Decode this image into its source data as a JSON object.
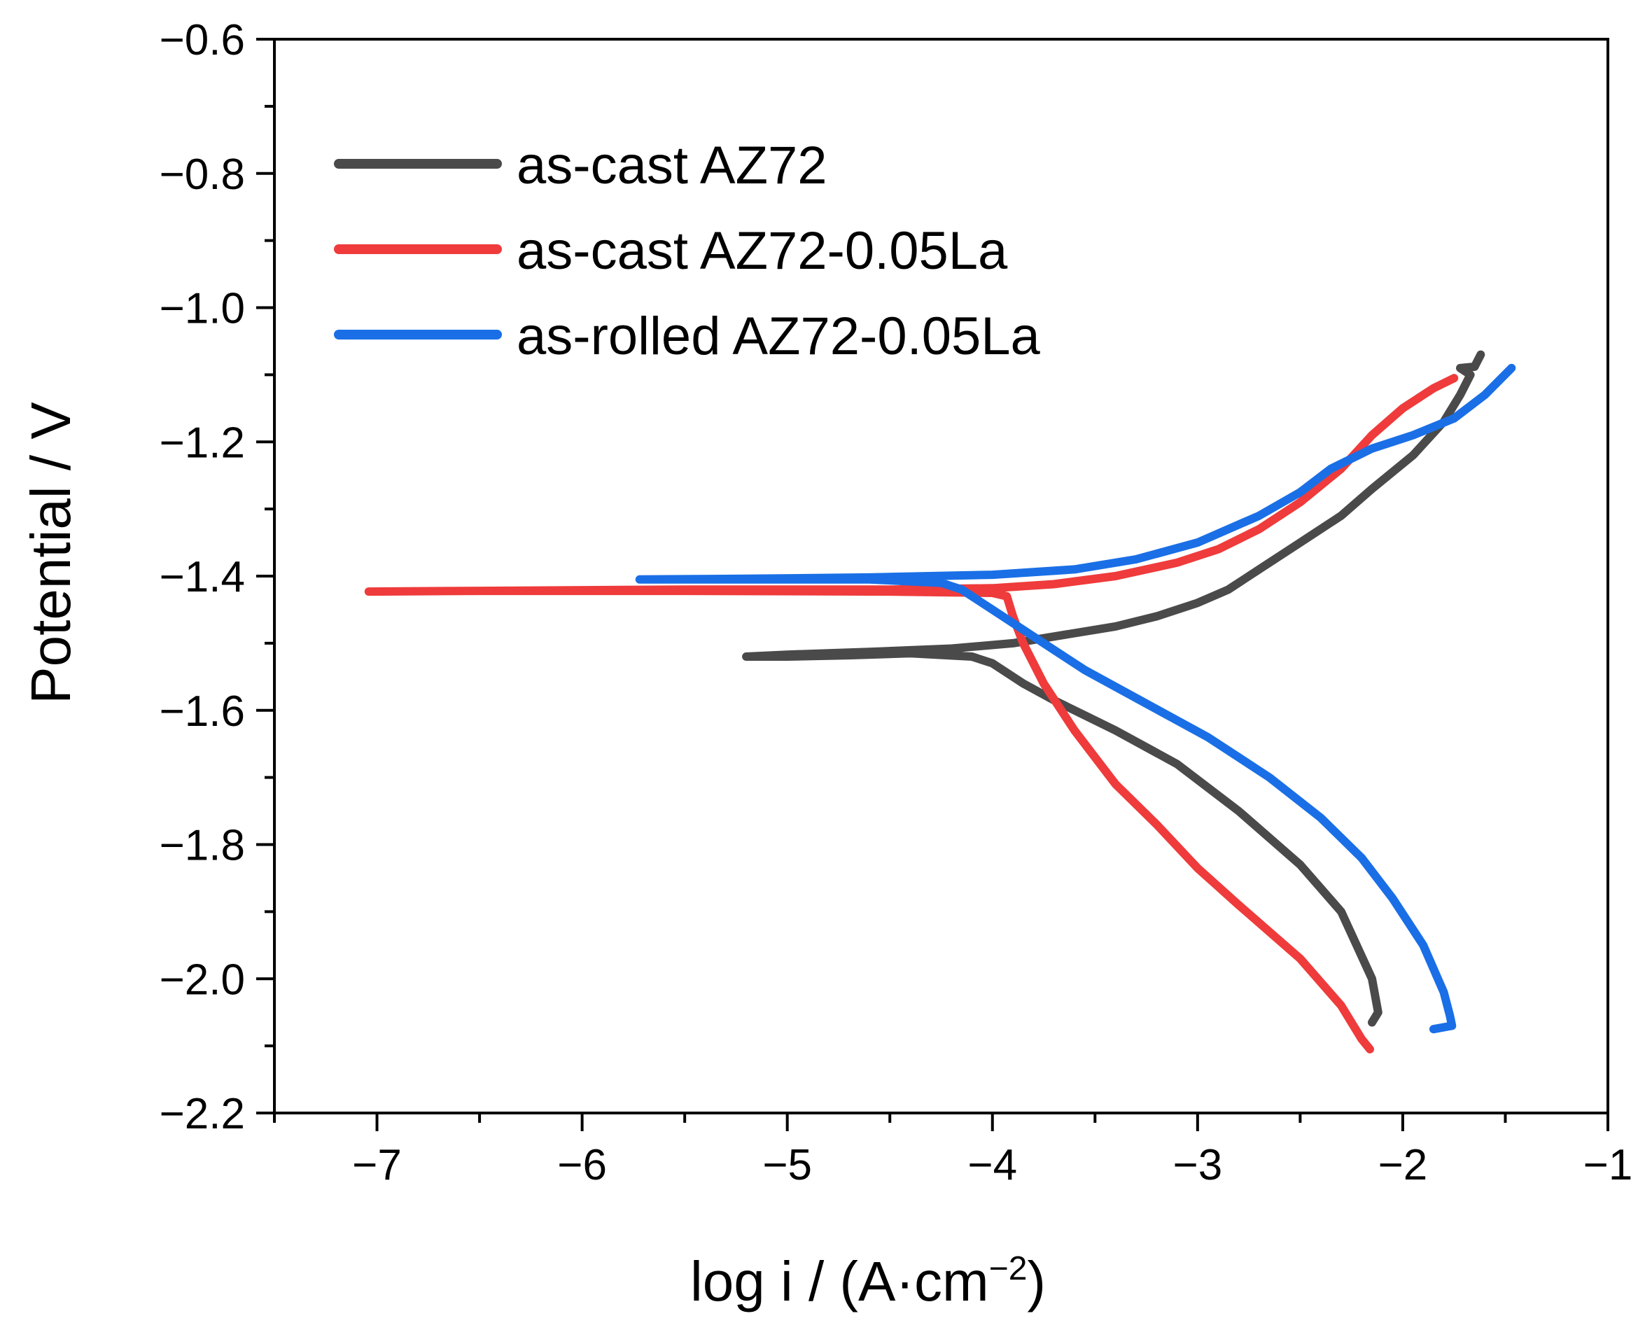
{
  "chart_data": {
    "type": "line",
    "title": "",
    "xlabel": "log i / (A·cm",
    "xlabel_sup": "−2",
    "xlabel_close": ")",
    "ylabel": "Potential / V",
    "xlim": [
      -7.5,
      -1
    ],
    "ylim": [
      -2.2,
      -0.6
    ],
    "x_ticks": [
      -7,
      -6,
      -5,
      -4,
      -3,
      -2,
      -1
    ],
    "x_tick_labels": [
      "−7",
      "−6",
      "−5",
      "−4",
      "−3",
      "−2",
      "−1"
    ],
    "y_ticks": [
      -0.6,
      -0.8,
      -1.0,
      -1.2,
      -1.4,
      -1.6,
      -1.8,
      -2.0,
      -2.2
    ],
    "y_tick_labels": [
      "−0.6",
      "−0.8",
      "−1.0",
      "−1.2",
      "−1.4",
      "−1.6",
      "−1.8",
      "−2.0",
      "−2.2"
    ],
    "grid": false,
    "legend_position": "top-left",
    "series": [
      {
        "name": "as-cast  AZ72",
        "color": "#4a4a4a",
        "points": [
          [
            -2.15,
            -2.065
          ],
          [
            -2.12,
            -2.05
          ],
          [
            -2.15,
            -2.0
          ],
          [
            -2.3,
            -1.9
          ],
          [
            -2.5,
            -1.83
          ],
          [
            -2.8,
            -1.75
          ],
          [
            -3.1,
            -1.68
          ],
          [
            -3.4,
            -1.63
          ],
          [
            -3.7,
            -1.585
          ],
          [
            -3.85,
            -1.56
          ],
          [
            -4.0,
            -1.53
          ],
          [
            -4.1,
            -1.52
          ],
          [
            -4.4,
            -1.515
          ],
          [
            -4.7,
            -1.518
          ],
          [
            -5.0,
            -1.52
          ],
          [
            -5.2,
            -1.52
          ],
          [
            -5.0,
            -1.517
          ],
          [
            -4.6,
            -1.513
          ],
          [
            -4.2,
            -1.508
          ],
          [
            -3.9,
            -1.5
          ],
          [
            -3.7,
            -1.49
          ],
          [
            -3.4,
            -1.475
          ],
          [
            -3.2,
            -1.46
          ],
          [
            -3.0,
            -1.44
          ],
          [
            -2.85,
            -1.42
          ],
          [
            -2.7,
            -1.39
          ],
          [
            -2.5,
            -1.35
          ],
          [
            -2.3,
            -1.31
          ],
          [
            -2.15,
            -1.27
          ],
          [
            -1.95,
            -1.22
          ],
          [
            -1.8,
            -1.17
          ],
          [
            -1.72,
            -1.13
          ],
          [
            -1.67,
            -1.1
          ],
          [
            -1.72,
            -1.09
          ],
          [
            -1.65,
            -1.088
          ],
          [
            -1.62,
            -1.07
          ]
        ]
      },
      {
        "name": "as-cast AZ72-0.05La",
        "color": "#ef3b3b",
        "points": [
          [
            -2.16,
            -2.105
          ],
          [
            -2.2,
            -2.09
          ],
          [
            -2.3,
            -2.04
          ],
          [
            -2.5,
            -1.97
          ],
          [
            -2.8,
            -1.89
          ],
          [
            -3.0,
            -1.835
          ],
          [
            -3.2,
            -1.77
          ],
          [
            -3.4,
            -1.71
          ],
          [
            -3.6,
            -1.63
          ],
          [
            -3.75,
            -1.56
          ],
          [
            -3.85,
            -1.5
          ],
          [
            -3.9,
            -1.46
          ],
          [
            -3.93,
            -1.43
          ],
          [
            -4.0,
            -1.425
          ],
          [
            -4.5,
            -1.423
          ],
          [
            -5.5,
            -1.422
          ],
          [
            -6.5,
            -1.422
          ],
          [
            -7.04,
            -1.423
          ],
          [
            -6.5,
            -1.422
          ],
          [
            -5.5,
            -1.42
          ],
          [
            -4.5,
            -1.42
          ],
          [
            -4.0,
            -1.418
          ],
          [
            -3.7,
            -1.412
          ],
          [
            -3.4,
            -1.4
          ],
          [
            -3.1,
            -1.38
          ],
          [
            -2.9,
            -1.36
          ],
          [
            -2.7,
            -1.33
          ],
          [
            -2.5,
            -1.29
          ],
          [
            -2.3,
            -1.24
          ],
          [
            -2.15,
            -1.19
          ],
          [
            -2.0,
            -1.15
          ],
          [
            -1.85,
            -1.12
          ],
          [
            -1.75,
            -1.105
          ]
        ]
      },
      {
        "name": "as-rolled AZ72-0.05La",
        "color": "#1a6fe6",
        "points": [
          [
            -1.85,
            -2.075
          ],
          [
            -1.76,
            -2.07
          ],
          [
            -1.77,
            -2.055
          ],
          [
            -1.8,
            -2.02
          ],
          [
            -1.9,
            -1.95
          ],
          [
            -2.05,
            -1.88
          ],
          [
            -2.2,
            -1.82
          ],
          [
            -2.4,
            -1.76
          ],
          [
            -2.65,
            -1.7
          ],
          [
            -2.95,
            -1.64
          ],
          [
            -3.25,
            -1.59
          ],
          [
            -3.55,
            -1.54
          ],
          [
            -3.75,
            -1.5
          ],
          [
            -3.95,
            -1.46
          ],
          [
            -4.15,
            -1.42
          ],
          [
            -4.25,
            -1.41
          ],
          [
            -4.6,
            -1.405
          ],
          [
            -5.2,
            -1.405
          ],
          [
            -5.72,
            -1.405
          ],
          [
            -5.2,
            -1.404
          ],
          [
            -4.6,
            -1.402
          ],
          [
            -4.0,
            -1.398
          ],
          [
            -3.6,
            -1.39
          ],
          [
            -3.3,
            -1.375
          ],
          [
            -3.0,
            -1.35
          ],
          [
            -2.7,
            -1.31
          ],
          [
            -2.5,
            -1.275
          ],
          [
            -2.35,
            -1.24
          ],
          [
            -2.15,
            -1.21
          ],
          [
            -1.95,
            -1.19
          ],
          [
            -1.75,
            -1.165
          ],
          [
            -1.6,
            -1.13
          ],
          [
            -1.47,
            -1.09
          ]
        ]
      }
    ]
  }
}
